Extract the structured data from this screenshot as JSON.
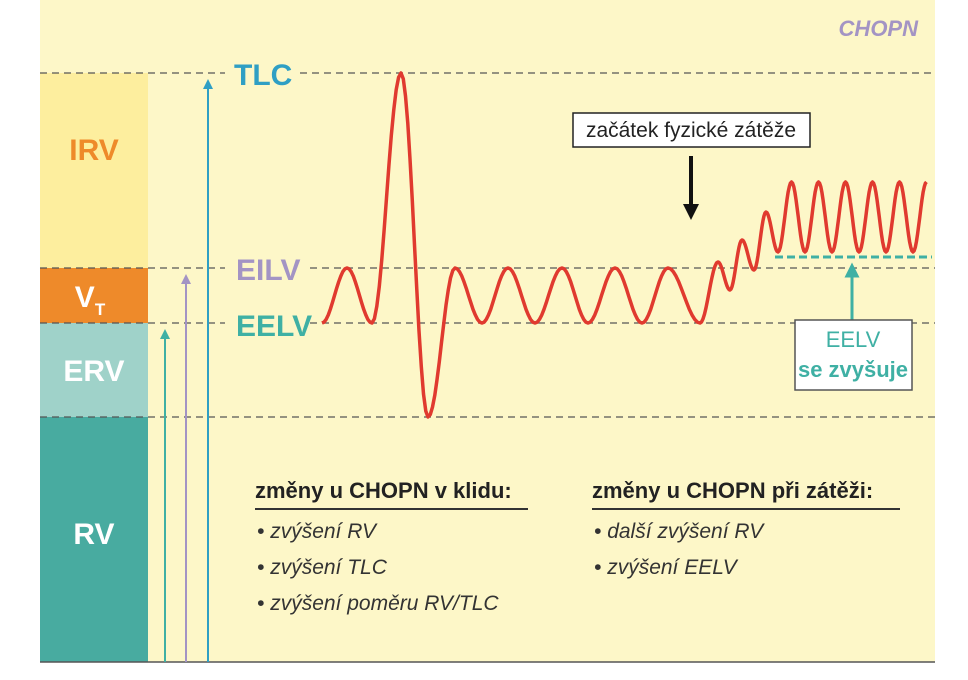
{
  "corner_label": "CHOPN",
  "volumes": [
    {
      "label": "IRV"
    },
    {
      "label": "V",
      "subscript": "T"
    },
    {
      "label": "ERV"
    },
    {
      "label": "RV"
    }
  ],
  "levels": [
    {
      "label": "TLC"
    },
    {
      "label": "EILV"
    },
    {
      "label": "EELV"
    }
  ],
  "callouts": {
    "exercise_start": "začátek fyzické zátěže",
    "eelv_rise": [
      "EELV",
      "se zvyšuje"
    ]
  },
  "notes": [
    {
      "heading": "změny u CHOPN v klidu:",
      "items": [
        "zvýšení RV",
        "zvýšení TLC",
        "zvýšení poměru RV/TLC"
      ]
    },
    {
      "heading": "změny u CHOPN při zátěži:",
      "items": [
        "další zvýšení RV",
        "zvýšení EELV"
      ]
    }
  ]
}
